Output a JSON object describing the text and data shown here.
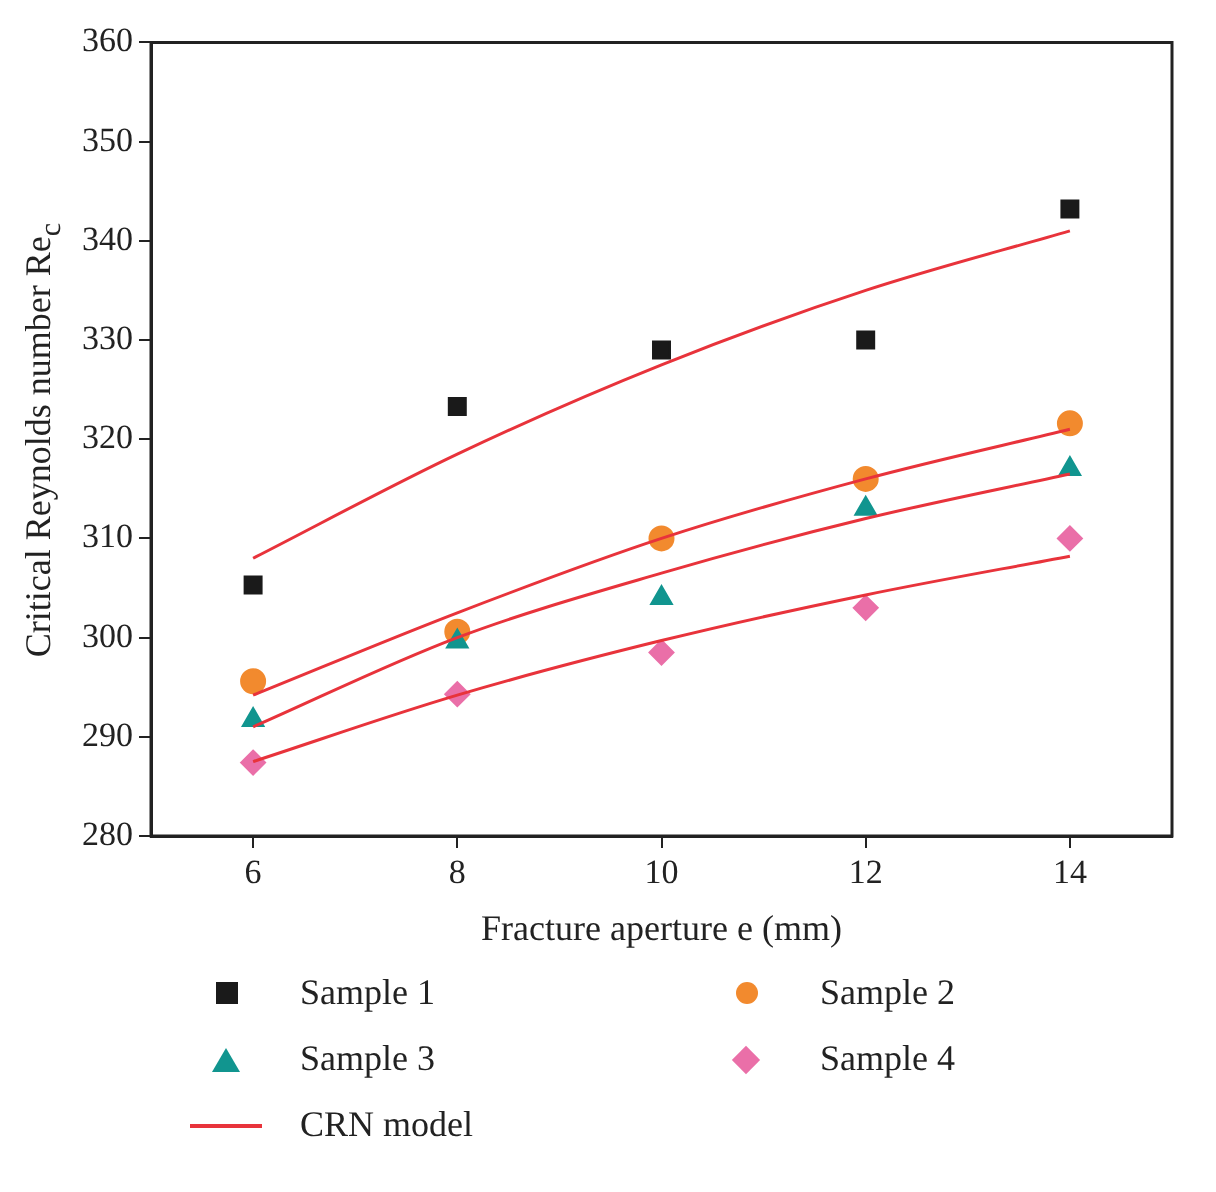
{
  "chart_data": {
    "type": "scatter",
    "xlabel": "Fracture aperture e (mm)",
    "ylabel": "Critical Reynolds number Re$_{c}$",
    "x": [
      6,
      8,
      10,
      12,
      14
    ],
    "series": [
      {
        "name": "Sample 1",
        "color": "#1a1a1a",
        "marker": "square",
        "values": [
          305.3,
          323.3,
          329,
          330,
          343.2
        ]
      },
      {
        "name": "Sample 2",
        "color": "#f28a2e",
        "marker": "circle",
        "values": [
          295.6,
          300.6,
          310,
          316,
          321.6
        ]
      },
      {
        "name": "Sample 3",
        "color": "#11958f",
        "marker": "triangle",
        "values": [
          291.7,
          299.6,
          304,
          313,
          317
        ]
      },
      {
        "name": "Sample 4",
        "color": "#ea6fa8",
        "marker": "diamond",
        "values": [
          287.4,
          294.3,
          298.5,
          303,
          310
        ]
      },
      {
        "name": "CRN model",
        "type": "line",
        "color": "#e8333b",
        "marker": "none",
        "values": [
          308,
          318.5,
          327.5,
          335,
          341
        ]
      },
      {
        "type": "line",
        "color": "#e8333b",
        "marker": "none",
        "values": [
          294.2,
          302.5,
          310,
          316,
          321
        ]
      },
      {
        "type": "line",
        "color": "#e8333b",
        "marker": "none",
        "values": [
          291,
          300,
          306.5,
          312,
          316.5
        ]
      },
      {
        "type": "line",
        "color": "#e8333b",
        "marker": "none",
        "values": [
          287.5,
          294.2,
          299.7,
          304.3,
          308.2
        ]
      }
    ],
    "xlim": [
      5,
      15
    ],
    "xticks": [
      6,
      8,
      10,
      12,
      14
    ],
    "ylim": [
      280,
      360
    ],
    "yticks": [
      280,
      290,
      300,
      310,
      320,
      330,
      340,
      350,
      360
    ],
    "grid": false,
    "legend": "bottom"
  }
}
